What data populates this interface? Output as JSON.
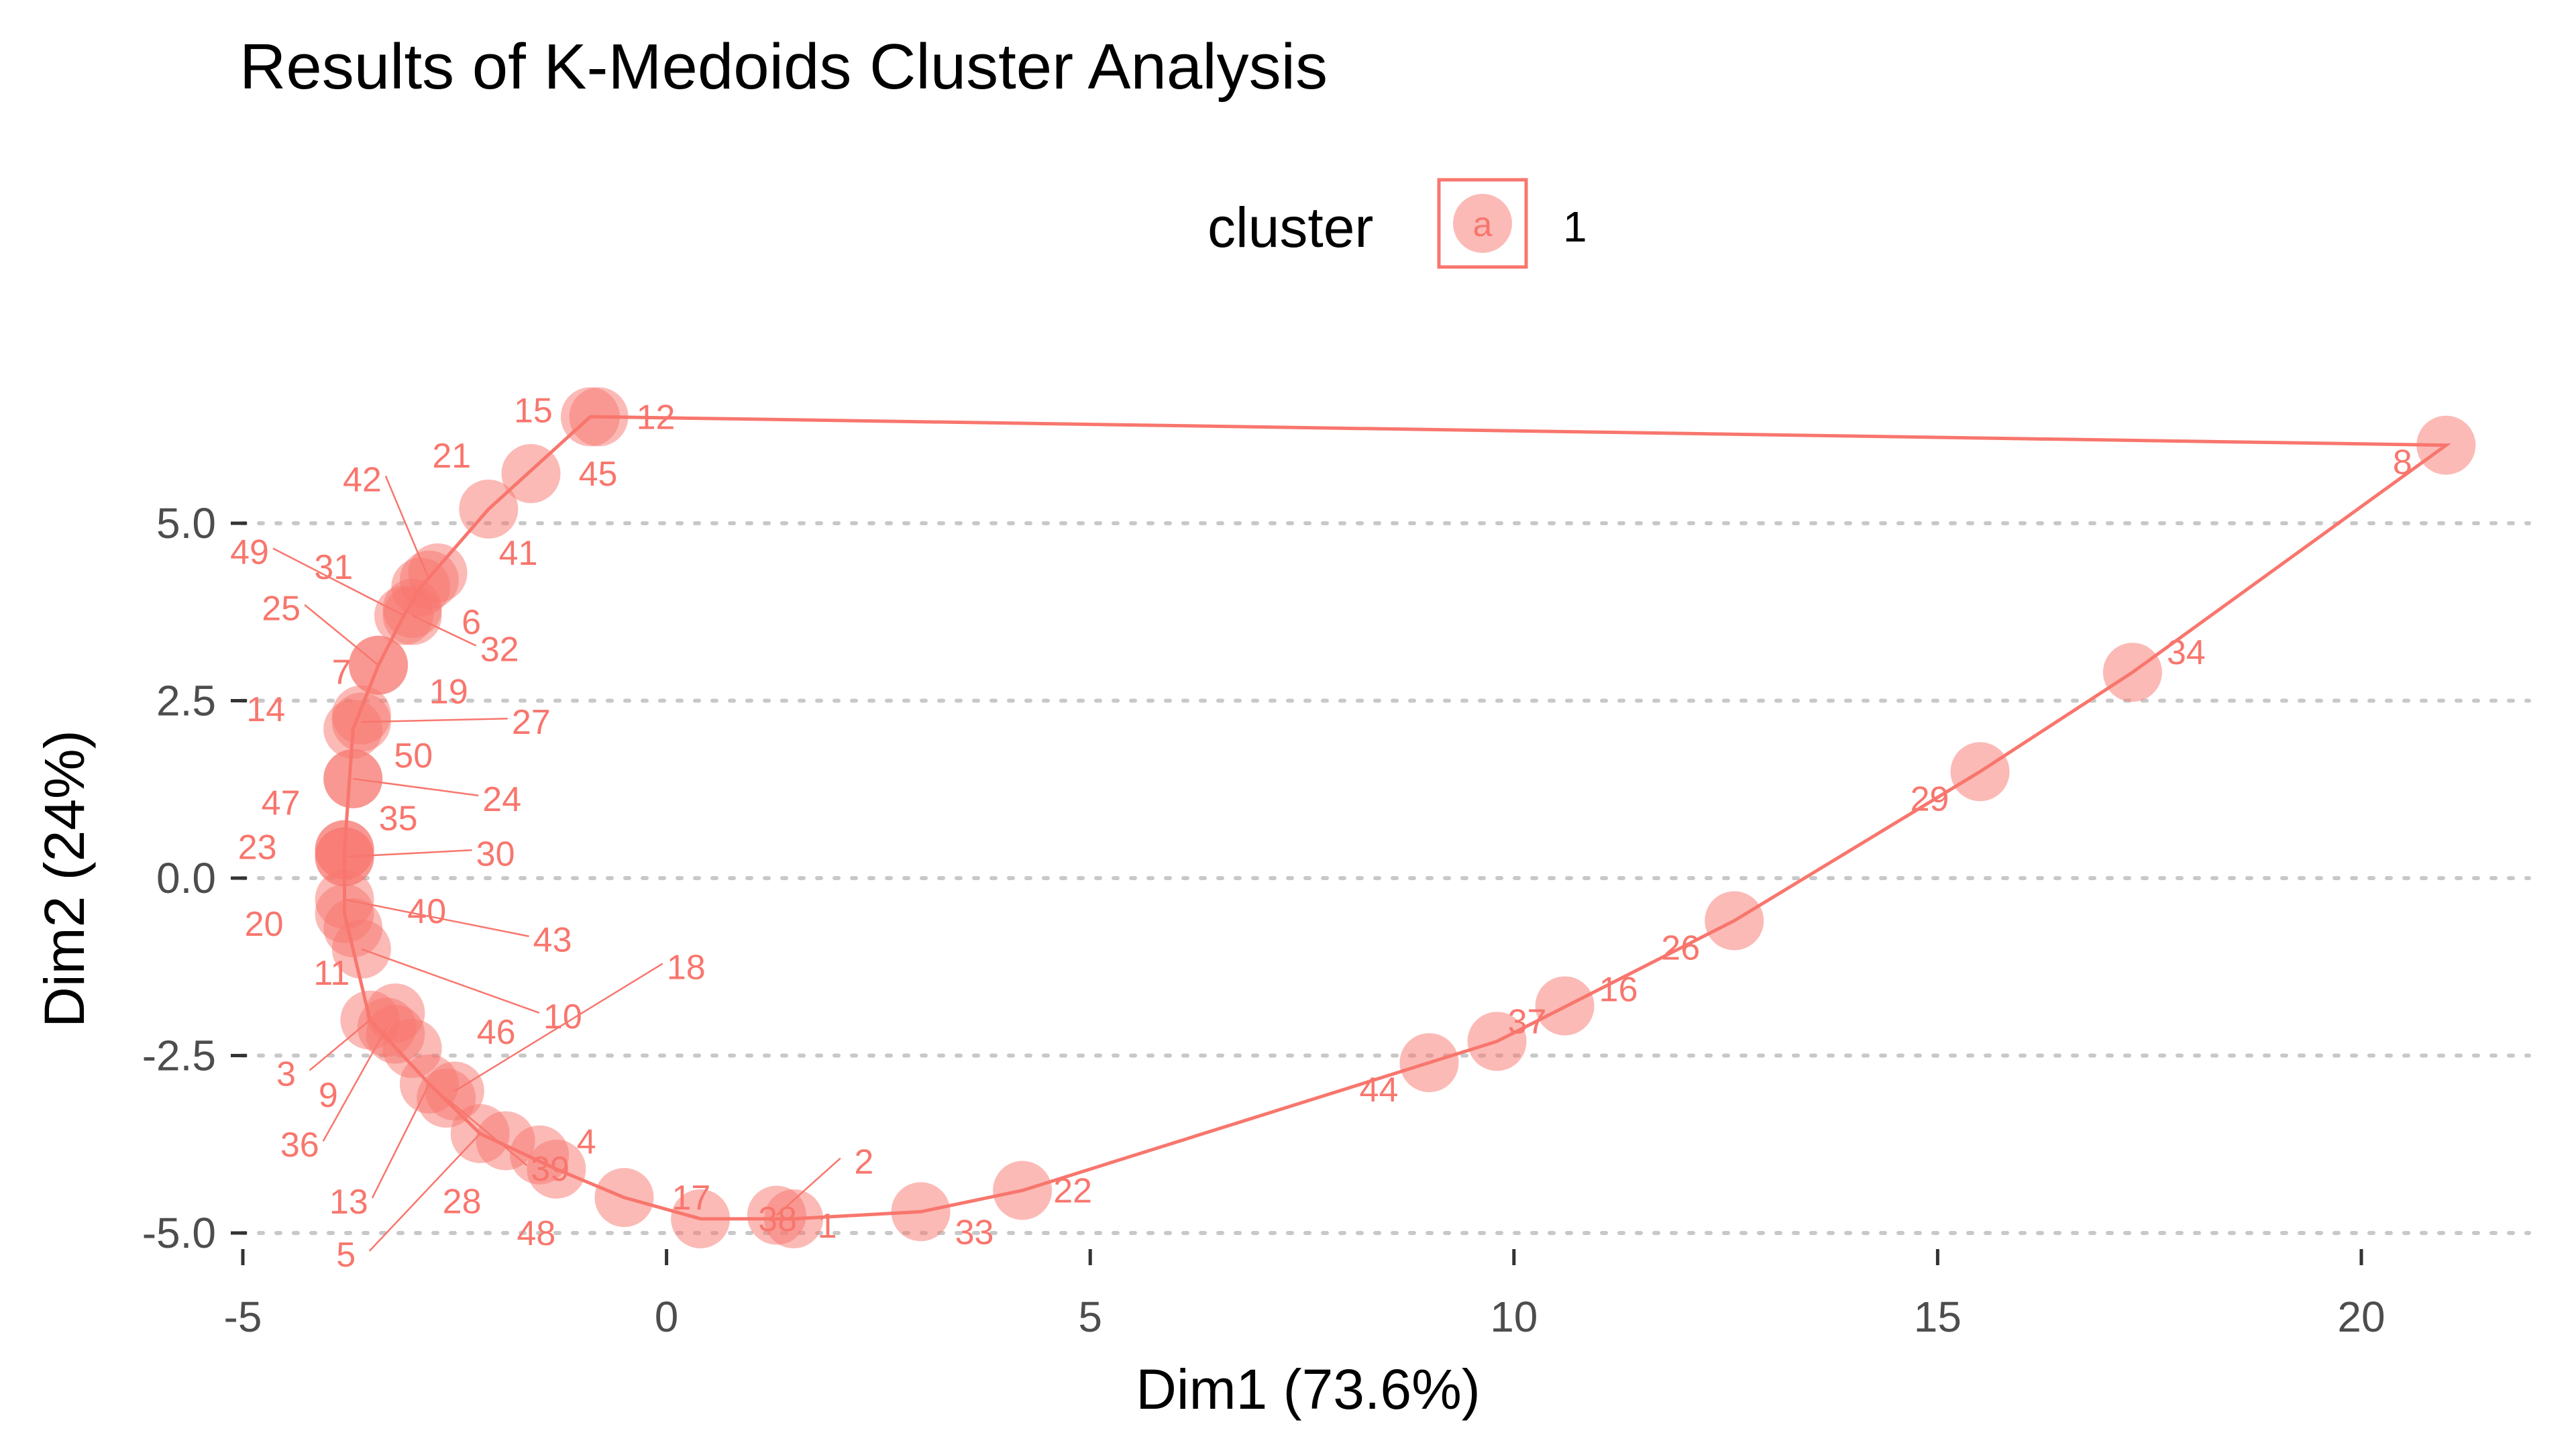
{
  "chart_data": {
    "type": "scatter",
    "title": "Results of K-Medoids Cluster Analysis",
    "xlabel": "Dim1 (73.6%)",
    "ylabel": "Dim2 (24%)",
    "xlim": [
      -5,
      21.5
    ],
    "ylim": [
      -5.3,
      6.8
    ],
    "x_ticks": [
      -5,
      0,
      5,
      10,
      15,
      20
    ],
    "x_tick_labels": [
      "-5",
      "0",
      "5",
      "10",
      "15",
      "20"
    ],
    "y_ticks": [
      -5,
      -2.5,
      0,
      2.5,
      5
    ],
    "y_tick_labels": [
      "-5.0",
      "-2.5",
      "0.0",
      "2.5",
      "5.0"
    ],
    "grid": "horizontal dotted at y ticks",
    "legend": {
      "title": "cluster",
      "key_glyph": "a",
      "entries": [
        "1"
      ],
      "placement": "top"
    },
    "colors": {
      "cluster_1": "#F8766D",
      "grid": "#c8c8c8",
      "axis": "#333333"
    },
    "series": [
      {
        "name": "1",
        "points": [
          {
            "label": "1",
            "x": 1.5,
            "y": -4.8
          },
          {
            "label": "2",
            "x": 1.3,
            "y": -4.75
          },
          {
            "label": "3",
            "x": -3.5,
            "y": -2.0
          },
          {
            "label": "4",
            "x": -1.5,
            "y": -3.9
          },
          {
            "label": "5",
            "x": -2.2,
            "y": -3.6
          },
          {
            "label": "6",
            "x": -3.0,
            "y": 3.8
          },
          {
            "label": "7",
            "x": -3.4,
            "y": 3.0
          },
          {
            "label": "8",
            "x": 21.0,
            "y": 6.1
          },
          {
            "label": "9",
            "x": -3.2,
            "y": -2.2
          },
          {
            "label": "10",
            "x": -3.6,
            "y": -1.0
          },
          {
            "label": "11",
            "x": -3.2,
            "y": -1.9
          },
          {
            "label": "12",
            "x": -0.8,
            "y": 6.5
          },
          {
            "label": "13",
            "x": -2.8,
            "y": -2.9
          },
          {
            "label": "14",
            "x": -3.7,
            "y": 2.1
          },
          {
            "label": "15",
            "x": -0.9,
            "y": 6.5
          },
          {
            "label": "16",
            "x": 10.6,
            "y": -1.8
          },
          {
            "label": "17",
            "x": -0.5,
            "y": -4.5
          },
          {
            "label": "18",
            "x": -2.5,
            "y": -3.0
          },
          {
            "label": "19",
            "x": -3.6,
            "y": 2.3
          },
          {
            "label": "20",
            "x": -3.8,
            "y": -0.5
          },
          {
            "label": "21",
            "x": -2.1,
            "y": 5.2
          },
          {
            "label": "22",
            "x": 4.2,
            "y": -4.4
          },
          {
            "label": "23",
            "x": -3.8,
            "y": 0.3
          },
          {
            "label": "24",
            "x": -3.7,
            "y": 1.4
          },
          {
            "label": "25",
            "x": -3.4,
            "y": 3.0
          },
          {
            "label": "26",
            "x": 12.6,
            "y": -0.6
          },
          {
            "label": "27",
            "x": -3.6,
            "y": 2.2
          },
          {
            "label": "28",
            "x": -1.9,
            "y": -3.7
          },
          {
            "label": "29",
            "x": 15.5,
            "y": 1.5
          },
          {
            "label": "30",
            "x": -3.8,
            "y": 0.3
          },
          {
            "label": "31",
            "x": -2.9,
            "y": 4.1
          },
          {
            "label": "32",
            "x": -3.0,
            "y": 3.7
          },
          {
            "label": "33",
            "x": 3.0,
            "y": -4.7
          },
          {
            "label": "34",
            "x": 17.3,
            "y": 2.9
          },
          {
            "label": "35",
            "x": -3.8,
            "y": 0.4
          },
          {
            "label": "36",
            "x": -3.3,
            "y": -2.1
          },
          {
            "label": "37",
            "x": 9.8,
            "y": -2.3
          },
          {
            "label": "38",
            "x": 0.4,
            "y": -4.8
          },
          {
            "label": "39",
            "x": -2.6,
            "y": -3.1
          },
          {
            "label": "40",
            "x": -3.7,
            "y": -0.7
          },
          {
            "label": "41",
            "x": -2.7,
            "y": 4.3
          },
          {
            "label": "42",
            "x": -2.8,
            "y": 4.2
          },
          {
            "label": "43",
            "x": -3.8,
            "y": -0.3
          },
          {
            "label": "44",
            "x": 9.0,
            "y": -2.6
          },
          {
            "label": "45",
            "x": -1.6,
            "y": 5.7
          },
          {
            "label": "46",
            "x": -3.0,
            "y": -2.4
          },
          {
            "label": "47",
            "x": -3.8,
            "y": 0.4
          },
          {
            "label": "48",
            "x": -1.3,
            "y": -4.1
          },
          {
            "label": "49",
            "x": -3.1,
            "y": 3.7
          },
          {
            "label": "50",
            "x": -3.7,
            "y": 1.4
          }
        ]
      }
    ]
  }
}
